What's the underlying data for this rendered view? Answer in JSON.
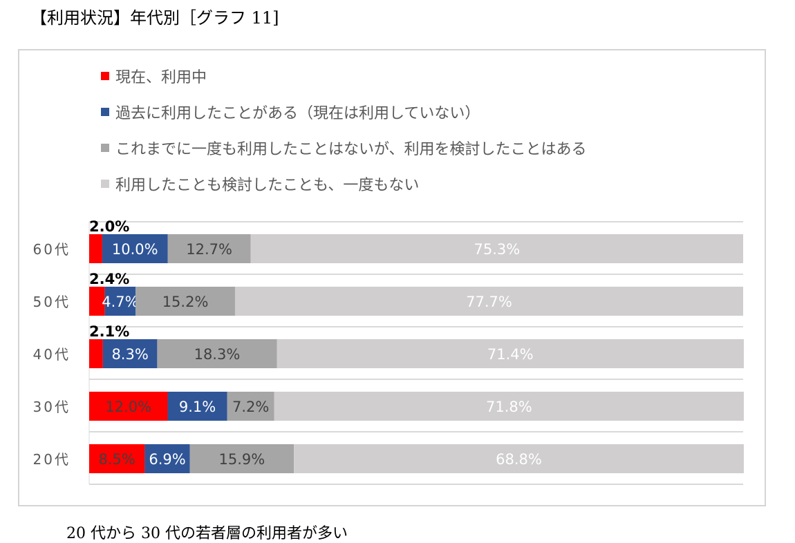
{
  "page": {
    "title": "【利用状況】年代別［グラフ 11]",
    "caption": "20 代から 30 代の若者層の利用者が多い"
  },
  "chart_data": {
    "type": "bar",
    "orientation": "horizontal",
    "stacked": true,
    "percent_stacked": true,
    "legend_placement": "top-left",
    "categories": [
      "60代",
      "50代",
      "40代",
      "30代",
      "20代"
    ],
    "series": [
      {
        "name": "現在、利用中",
        "color": "#ff0000",
        "values": [
          2.0,
          2.4,
          2.1,
          12.0,
          8.5
        ],
        "labels": [
          "2.0%",
          "2.4%",
          "2.1%",
          "12.0%",
          "8.5%"
        ]
      },
      {
        "name": "過去に利用したことがある（現在は利用していない）",
        "color": "#2f5597",
        "values": [
          10.0,
          4.7,
          8.3,
          9.1,
          6.9
        ],
        "labels": [
          "10.0%",
          "4.7%",
          "8.3%",
          "9.1%",
          "6.9%"
        ]
      },
      {
        "name": "これまでに一度も利用したことはないが、利用を検討したことはある",
        "color": "#a6a6a6",
        "values": [
          12.7,
          15.2,
          18.3,
          7.2,
          15.9
        ],
        "labels": [
          "12.7%",
          "15.2%",
          "18.3%",
          "7.2%",
          "15.9%"
        ]
      },
      {
        "name": "利用したことも検討したことも、一度もない",
        "color": "#d0cece",
        "values": [
          75.3,
          77.7,
          71.4,
          71.8,
          68.8
        ],
        "labels": [
          "75.3%",
          "77.7%",
          "71.4%",
          "71.8%",
          "68.8%"
        ]
      }
    ],
    "xlim": [
      0,
      100
    ],
    "grid": true
  }
}
